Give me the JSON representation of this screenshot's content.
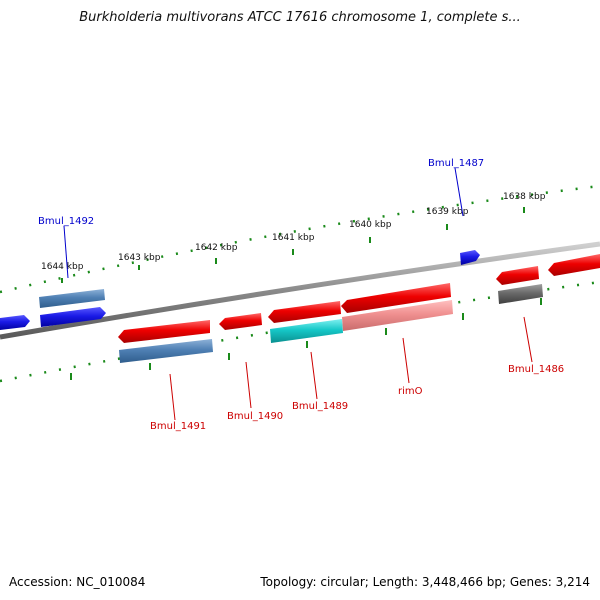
{
  "title": "Burkholderia multivorans ATCC 17616 chromosome 1, complete s...",
  "footer": {
    "accession": "Accession: NC_010084",
    "info": "Topology: circular; Length: 3,448,466 bp; Genes: 3,214"
  },
  "colors": {
    "backbone": "#8a8a8a",
    "tick": "#1a8a1a",
    "label_blue": "#0000cc",
    "label_red": "#cc0000",
    "leader_line": "#cc0000"
  },
  "ruler_labels": [
    "1638 kbp",
    "1639 kbp",
    "1640 kbp",
    "1641 kbp",
    "1642 kbp",
    "1643 kbp",
    "1644 kbp"
  ],
  "genes": [
    {
      "name": "Bmul_1487",
      "color": "blue",
      "strand": "+"
    },
    {
      "name": "Bmul_1492",
      "color": "blue",
      "strand": "+"
    },
    {
      "name": "Bmul_1486",
      "color": "red",
      "strand": "-"
    },
    {
      "name": "rimO",
      "color": "red",
      "strand": "-"
    },
    {
      "name": "Bmul_1489",
      "color": "red",
      "strand": "-"
    },
    {
      "name": "Bmul_1490",
      "color": "red",
      "strand": "-"
    },
    {
      "name": "Bmul_1491",
      "color": "red",
      "strand": "-"
    }
  ]
}
